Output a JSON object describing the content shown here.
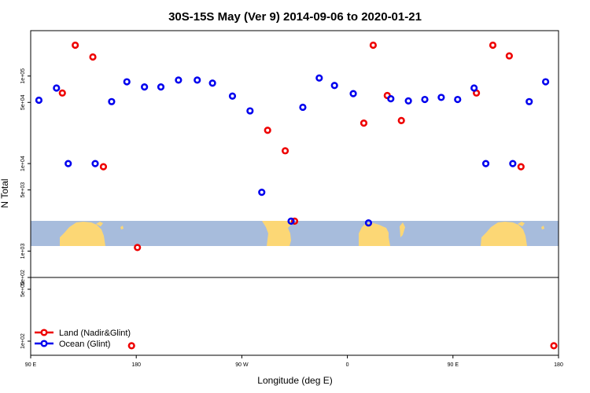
{
  "chart_data": {
    "type": "scatter",
    "title": "30S-15S May (Ver 9)   2014-09-06 to 2020-01-21",
    "xlabel": "Longitude (deg E)",
    "ylabel": "N Total",
    "y_scale": "log",
    "xlim": [
      90,
      540
    ],
    "x_ticks": [
      {
        "value": 90,
        "label": "90 E"
      },
      {
        "value": 180,
        "label": "180"
      },
      {
        "value": 270,
        "label": "90 W"
      },
      {
        "value": 360,
        "label": "0"
      },
      {
        "value": 450,
        "label": "90 E"
      },
      {
        "value": 540,
        "label": "180"
      }
    ],
    "upper_panel": {
      "ylim": [
        500,
        330000
      ],
      "y_ticks": [
        {
          "value": 500,
          "label": "5e+02"
        },
        {
          "value": 1000,
          "label": "1e+03"
        },
        {
          "value": 5000,
          "label": "5e+03"
        },
        {
          "value": 10000,
          "label": "1e+04"
        },
        {
          "value": 50000,
          "label": "5e+04"
        },
        {
          "value": 100000,
          "label": "1e+05"
        }
      ]
    },
    "lower_panel": {
      "ylim": [
        70,
        500
      ],
      "y_ticks": [
        {
          "value": 500,
          "label": "5e+02"
        },
        {
          "value": 100,
          "label": "1e+02"
        }
      ]
    },
    "series": [
      {
        "name": "Land (Nadir&Glint)",
        "color": "#ee0000",
        "points": [
          {
            "x": 117,
            "y": 64000
          },
          {
            "x": 128,
            "y": 225000
          },
          {
            "x": 143,
            "y": 165000
          },
          {
            "x": 152,
            "y": 9200
          },
          {
            "x": 176,
            "y": 89
          },
          {
            "x": 181,
            "y": 1100
          },
          {
            "x": 292,
            "y": 24000
          },
          {
            "x": 307,
            "y": 14000
          },
          {
            "x": 315,
            "y": 2200
          },
          {
            "x": 374,
            "y": 29000
          },
          {
            "x": 382,
            "y": 225000
          },
          {
            "x": 394,
            "y": 60000
          },
          {
            "x": 406,
            "y": 31000
          },
          {
            "x": 470,
            "y": 64000
          },
          {
            "x": 484,
            "y": 225000
          },
          {
            "x": 498,
            "y": 170000
          },
          {
            "x": 508,
            "y": 9200
          },
          {
            "x": 536,
            "y": 89
          }
        ]
      },
      {
        "name": "Ocean (Glint)",
        "color": "#0000ee",
        "points": [
          {
            "x": 97,
            "y": 53000
          },
          {
            "x": 112,
            "y": 73000
          },
          {
            "x": 122,
            "y": 10000
          },
          {
            "x": 145,
            "y": 10000
          },
          {
            "x": 159,
            "y": 51000
          },
          {
            "x": 172,
            "y": 86000
          },
          {
            "x": 187,
            "y": 75000
          },
          {
            "x": 201,
            "y": 75000
          },
          {
            "x": 216,
            "y": 90000
          },
          {
            "x": 232,
            "y": 90000
          },
          {
            "x": 245,
            "y": 83000
          },
          {
            "x": 262,
            "y": 59000
          },
          {
            "x": 277,
            "y": 40000
          },
          {
            "x": 287,
            "y": 4700
          },
          {
            "x": 312,
            "y": 2200
          },
          {
            "x": 322,
            "y": 44000
          },
          {
            "x": 336,
            "y": 95000
          },
          {
            "x": 349,
            "y": 78000
          },
          {
            "x": 365,
            "y": 63000
          },
          {
            "x": 378,
            "y": 2100
          },
          {
            "x": 397,
            "y": 55000
          },
          {
            "x": 412,
            "y": 52000
          },
          {
            "x": 426,
            "y": 54000
          },
          {
            "x": 440,
            "y": 57000
          },
          {
            "x": 454,
            "y": 54000
          },
          {
            "x": 468,
            "y": 73000
          },
          {
            "x": 478,
            "y": 10000
          },
          {
            "x": 501,
            "y": 10000
          },
          {
            "x": 515,
            "y": 51000
          },
          {
            "x": 529,
            "y": 86000
          }
        ]
      }
    ],
    "legend": {
      "position": "bottom-left"
    },
    "grid": false,
    "background_map": {
      "ocean_color": "#a7bcdc",
      "land_color": "#fcd775"
    }
  }
}
